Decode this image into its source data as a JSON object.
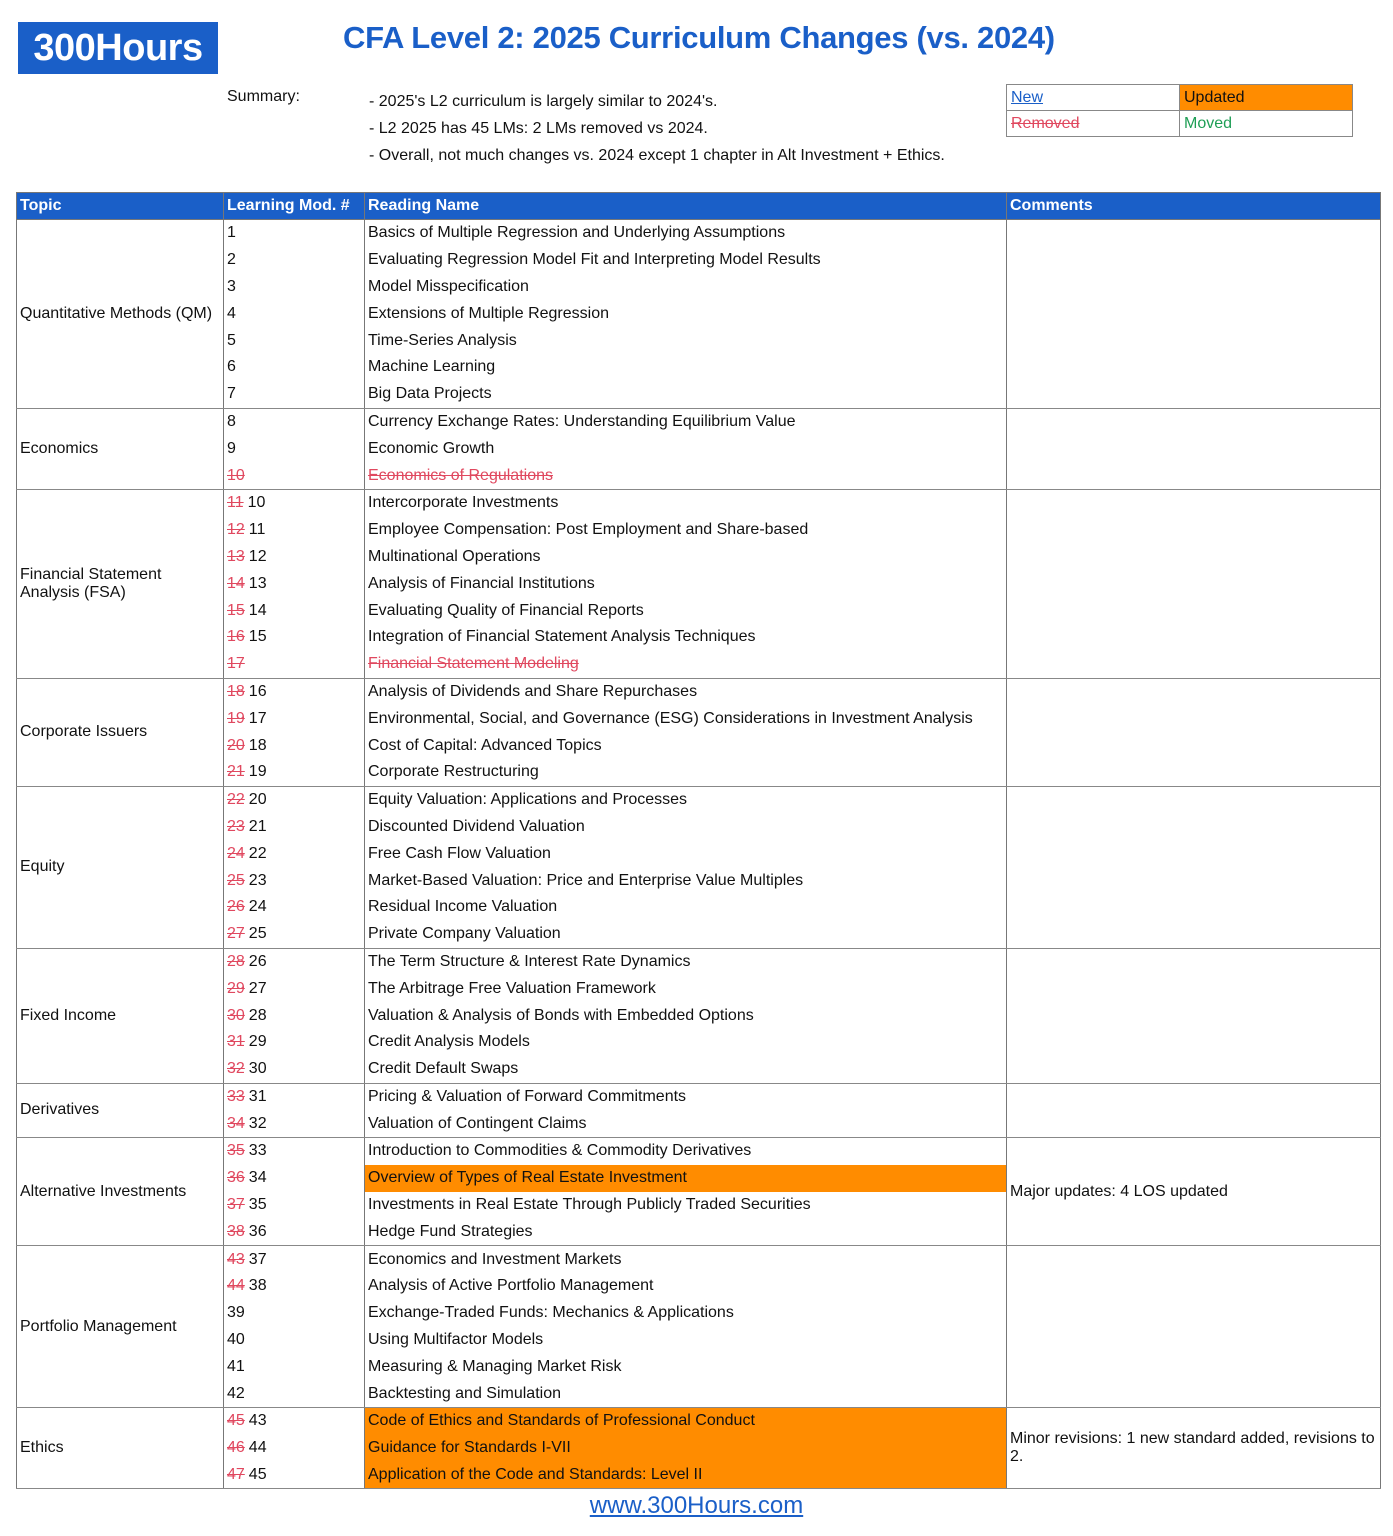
{
  "logo": "300Hours",
  "title": "CFA Level 2: 2025 Curriculum Changes (vs. 2024)",
  "summary": {
    "label": "Summary:",
    "lines": [
      "- 2025's L2 curriculum is largely similar to 2024's.",
      "- L2 2025 has 45 LMs: 2 LMs removed vs 2024.",
      "- Overall, not much changes vs. 2024 except 1 chapter in Alt Investment + Ethics."
    ]
  },
  "legend": {
    "new": "New",
    "updated": "Updated",
    "removed": "Removed",
    "moved": "Moved"
  },
  "colors": {
    "brand": "#1a5fc8",
    "updated": "#ff8c00",
    "removed": "#e0485f",
    "moved": "#1e9e55"
  },
  "headers": [
    "Topic",
    "Learning Mod. #",
    "Reading Name",
    "Comments"
  ],
  "groups": [
    {
      "topic": "Quantitative Methods (QM)",
      "comment": "",
      "rows": [
        {
          "old": "",
          "num": "1",
          "name": "Basics of Multiple Regression and Underlying Assumptions"
        },
        {
          "old": "",
          "num": "2",
          "name": "Evaluating Regression Model Fit and Interpreting Model Results"
        },
        {
          "old": "",
          "num": "3",
          "name": "Model Misspecification"
        },
        {
          "old": "",
          "num": "4",
          "name": "Extensions of Multiple Regression"
        },
        {
          "old": "",
          "num": "5",
          "name": "Time-Series Analysis"
        },
        {
          "old": "",
          "num": "6",
          "name": "Machine Learning"
        },
        {
          "old": "",
          "num": "7",
          "name": "Big Data Projects"
        }
      ]
    },
    {
      "topic": "Economics",
      "comment": "",
      "rows": [
        {
          "old": "",
          "num": "8",
          "name": "Currency Exchange Rates: Understanding Equilibrium Value"
        },
        {
          "old": "",
          "num": "9",
          "name": "Economic Growth"
        },
        {
          "old": "",
          "num": "10",
          "name": "Economics of Regulations",
          "removed": true
        }
      ]
    },
    {
      "topic": "Financial Statement Analysis (FSA)",
      "comment": "",
      "rows": [
        {
          "old": "11",
          "num": "10",
          "name": "Intercorporate Investments"
        },
        {
          "old": "12",
          "num": "11",
          "name": "Employee Compensation: Post Employment and Share-based"
        },
        {
          "old": "13",
          "num": "12",
          "name": "Multinational Operations"
        },
        {
          "old": "14",
          "num": "13",
          "name": "Analysis of Financial Institutions"
        },
        {
          "old": "15",
          "num": "14",
          "name": "Evaluating Quality of Financial Reports"
        },
        {
          "old": "16",
          "num": "15",
          "name": "Integration of Financial Statement Analysis Techniques"
        },
        {
          "old": "",
          "num": "17",
          "name": "Financial Statement Modeling",
          "removed": true
        }
      ]
    },
    {
      "topic": "Corporate Issuers",
      "comment": "",
      "rows": [
        {
          "old": "18",
          "num": "16",
          "name": "Analysis of Dividends and Share Repurchases"
        },
        {
          "old": "19",
          "num": "17",
          "name": "Environmental, Social, and Governance (ESG) Considerations in Investment Analysis"
        },
        {
          "old": "20",
          "num": "18",
          "name": "Cost of Capital: Advanced Topics"
        },
        {
          "old": "21",
          "num": "19",
          "name": "Corporate Restructuring"
        }
      ]
    },
    {
      "topic": "Equity",
      "comment": "",
      "rows": [
        {
          "old": "22",
          "num": "20",
          "name": "Equity Valuation: Applications and Processes"
        },
        {
          "old": "23",
          "num": "21",
          "name": "Discounted Dividend Valuation"
        },
        {
          "old": "24",
          "num": "22",
          "name": "Free Cash Flow Valuation"
        },
        {
          "old": "25",
          "num": "23",
          "name": "Market-Based Valuation: Price and Enterprise Value Multiples"
        },
        {
          "old": "26",
          "num": "24",
          "name": "Residual Income Valuation"
        },
        {
          "old": "27",
          "num": "25",
          "name": "Private Company Valuation"
        }
      ]
    },
    {
      "topic": "Fixed Income",
      "comment": "",
      "rows": [
        {
          "old": "28",
          "num": "26",
          "name": "The Term Structure & Interest Rate Dynamics"
        },
        {
          "old": "29",
          "num": "27",
          "name": "The Arbitrage Free Valuation Framework"
        },
        {
          "old": "30",
          "num": "28",
          "name": "Valuation & Analysis of Bonds with Embedded Options"
        },
        {
          "old": "31",
          "num": "29",
          "name": "Credit Analysis Models"
        },
        {
          "old": "32",
          "num": "30",
          "name": "Credit Default Swaps"
        }
      ]
    },
    {
      "topic": "Derivatives",
      "comment": "",
      "rows": [
        {
          "old": "33",
          "num": "31",
          "name": "Pricing & Valuation of Forward Commitments"
        },
        {
          "old": "34",
          "num": "32",
          "name": "Valuation of Contingent Claims"
        }
      ]
    },
    {
      "topic": "Alternative Investments",
      "comment": "Major updates: 4 LOS updated",
      "rows": [
        {
          "old": "35",
          "num": "33",
          "name": "Introduction to Commodities & Commodity Derivatives"
        },
        {
          "old": "36",
          "num": "34",
          "name": "Overview of Types of Real Estate Investment",
          "updated": true
        },
        {
          "old": "37",
          "num": "35",
          "name": "Investments in Real Estate Through Publicly Traded Securities"
        },
        {
          "old": "38",
          "num": "36",
          "name": "Hedge Fund Strategies"
        }
      ]
    },
    {
      "topic": "Portfolio Management",
      "comment": "",
      "rows": [
        {
          "old": "43",
          "num": "37",
          "name": "Economics and Investment Markets"
        },
        {
          "old": "44",
          "num": "38",
          "name": "Analysis of Active Portfolio Management"
        },
        {
          "old": "",
          "num": "39",
          "name": "Exchange-Traded Funds: Mechanics & Applications"
        },
        {
          "old": "",
          "num": "40",
          "name": "Using Multifactor Models"
        },
        {
          "old": "",
          "num": "41",
          "name": "Measuring & Managing Market Risk"
        },
        {
          "old": "",
          "num": "42",
          "name": "Backtesting and Simulation"
        }
      ]
    },
    {
      "topic": "Ethics",
      "comment": "Minor revisions: 1 new standard added, revisions to 2.",
      "rows": [
        {
          "old": "45",
          "num": "43",
          "name": "Code of Ethics and Standards of Professional Conduct",
          "updated": true
        },
        {
          "old": "46",
          "num": "44",
          "name": "Guidance for Standards I-VII",
          "updated": true
        },
        {
          "old": "47",
          "num": "45",
          "name": "Application of the Code and Standards: Level II",
          "updated": true
        }
      ]
    }
  ],
  "footer": "www.300Hours.com"
}
